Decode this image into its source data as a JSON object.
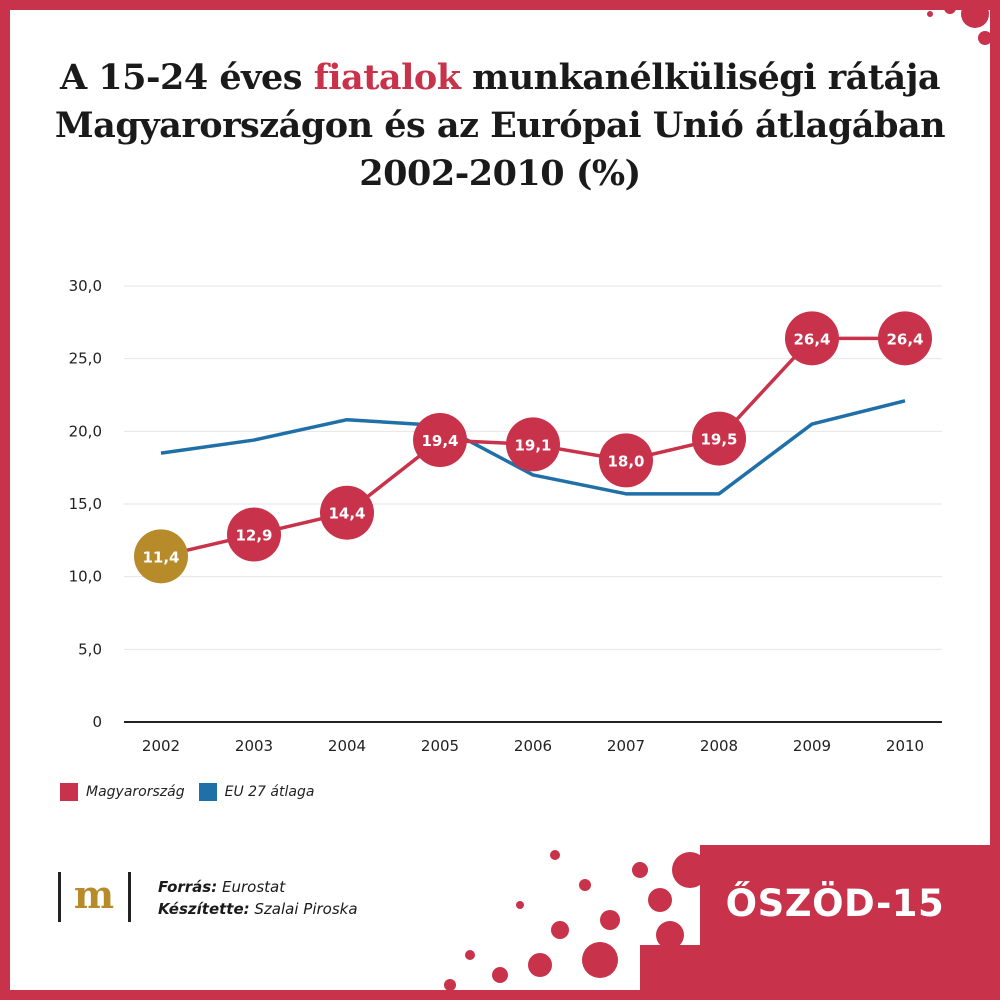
{
  "title": {
    "line1_a": "A 15-24 éves ",
    "line1_highlight": "fiatalok",
    "line1_b": " munkanélküliségi rátája",
    "line2": "Magyarországon és az Európai Unió átlagában",
    "line3": "2002-2010 (%)"
  },
  "chart_data": {
    "type": "line",
    "x": [
      "2002",
      "2003",
      "2004",
      "2005",
      "2006",
      "2007",
      "2008",
      "2009",
      "2010"
    ],
    "ylim": [
      0,
      30
    ],
    "yticks": [
      "0",
      "5,0",
      "10,0",
      "15,0",
      "20,0",
      "25,0",
      "30,0"
    ],
    "grid": true,
    "legend_position": "bottom-left",
    "series": [
      {
        "name": "Magyarország",
        "color": "#c8324a",
        "values": [
          11.4,
          12.9,
          14.4,
          19.4,
          19.1,
          18.0,
          19.5,
          26.4,
          26.4
        ],
        "labels": [
          "11,4",
          "12,9",
          "14,4",
          "19,4",
          "19,1",
          "18,0",
          "19,5",
          "26,4",
          "26,4"
        ],
        "highlight_first_color": "#b78a2a"
      },
      {
        "name": "EU 27 átlaga",
        "color": "#1f6fa8",
        "values": [
          18.5,
          19.4,
          20.8,
          20.4,
          17.0,
          15.7,
          15.7,
          20.5,
          22.1
        ]
      }
    ]
  },
  "legend": {
    "hu_label": "Magyarország",
    "eu_label": "EU 27 átlaga"
  },
  "footer": {
    "logo_letter": "m",
    "source_label": "Forrás:",
    "source_value": " Eurostat",
    "author_label": "Készítette:",
    "author_value": " Szalai Piroska",
    "badge": "ŐSZÖD-15"
  },
  "colors": {
    "accent_red": "#c8324a",
    "eu_blue": "#1f6fa8",
    "gold": "#b78a2a"
  }
}
